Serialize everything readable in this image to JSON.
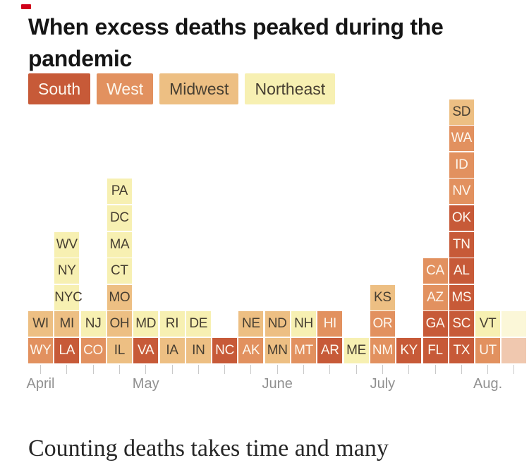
{
  "header": {
    "title": "When excess deaths peaked during the pandemic"
  },
  "legend": {
    "items": [
      {
        "key": "south",
        "label": "South"
      },
      {
        "key": "west",
        "label": "West"
      },
      {
        "key": "midwest",
        "label": "Midwest"
      },
      {
        "key": "northeast",
        "label": "Northeast"
      }
    ]
  },
  "colors": {
    "south": "#c75a38",
    "west": "#e2915f",
    "midwest": "#edbf83",
    "northeast": "#f7f0b2",
    "tile_label_light": "#fdf7ee",
    "tile_label_dark": "#463e31",
    "axis_text": "#909090",
    "tick": "#c9c9c9",
    "title_text": "#151515",
    "marker_red": "#d0021b"
  },
  "chart_data": {
    "type": "heatmap",
    "title": "When excess deaths peaked during the pandemic",
    "description": "Weekly tile timeline from April to August; each tile is a state (plus DC and NYC) placed in the week its excess deaths peaked, colored by region. Tiles stack bottom-to-top within each week.",
    "legend_position": "top",
    "legend_entries": [
      "South",
      "West",
      "Midwest",
      "Northeast"
    ],
    "x_axis": {
      "tick_labels": [
        "April",
        "May",
        "June",
        "July",
        "Aug."
      ],
      "tick_label_columns": [
        1,
        5,
        10,
        14,
        18
      ],
      "total_columns": 19,
      "grid": false
    },
    "columns": [
      {
        "week": 1,
        "states": [
          {
            "abbr": "WY",
            "region": "west"
          },
          {
            "abbr": "WI",
            "region": "midwest"
          }
        ]
      },
      {
        "week": 2,
        "states": [
          {
            "abbr": "LA",
            "region": "south"
          },
          {
            "abbr": "MI",
            "region": "midwest"
          },
          {
            "abbr": "NYC",
            "region": "northeast"
          },
          {
            "abbr": "NY",
            "region": "northeast"
          },
          {
            "abbr": "WV",
            "region": "northeast"
          }
        ]
      },
      {
        "week": 3,
        "states": [
          {
            "abbr": "CO",
            "region": "west"
          },
          {
            "abbr": "NJ",
            "region": "northeast"
          }
        ]
      },
      {
        "week": 4,
        "states": [
          {
            "abbr": "IL",
            "region": "midwest"
          },
          {
            "abbr": "OH",
            "region": "midwest"
          },
          {
            "abbr": "MO",
            "region": "midwest"
          },
          {
            "abbr": "CT",
            "region": "northeast"
          },
          {
            "abbr": "MA",
            "region": "northeast"
          },
          {
            "abbr": "DC",
            "region": "northeast"
          },
          {
            "abbr": "PA",
            "region": "northeast"
          }
        ]
      },
      {
        "week": 5,
        "states": [
          {
            "abbr": "VA",
            "region": "south"
          },
          {
            "abbr": "MD",
            "region": "northeast"
          }
        ]
      },
      {
        "week": 6,
        "states": [
          {
            "abbr": "IA",
            "region": "midwest"
          },
          {
            "abbr": "RI",
            "region": "northeast"
          }
        ]
      },
      {
        "week": 7,
        "states": [
          {
            "abbr": "IN",
            "region": "midwest"
          },
          {
            "abbr": "DE",
            "region": "northeast"
          }
        ]
      },
      {
        "week": 8,
        "states": [
          {
            "abbr": "NC",
            "region": "south"
          }
        ]
      },
      {
        "week": 9,
        "states": [
          {
            "abbr": "AK",
            "region": "west"
          },
          {
            "abbr": "NE",
            "region": "midwest"
          }
        ]
      },
      {
        "week": 10,
        "states": [
          {
            "abbr": "MN",
            "region": "midwest"
          },
          {
            "abbr": "ND",
            "region": "midwest"
          }
        ]
      },
      {
        "week": 11,
        "states": [
          {
            "abbr": "MT",
            "region": "west"
          },
          {
            "abbr": "NH",
            "region": "northeast"
          }
        ]
      },
      {
        "week": 12,
        "states": [
          {
            "abbr": "AR",
            "region": "south"
          },
          {
            "abbr": "HI",
            "region": "west"
          }
        ]
      },
      {
        "week": 13,
        "states": [
          {
            "abbr": "ME",
            "region": "northeast"
          }
        ]
      },
      {
        "week": 14,
        "states": [
          {
            "abbr": "NM",
            "region": "west"
          },
          {
            "abbr": "OR",
            "region": "west"
          },
          {
            "abbr": "KS",
            "region": "midwest"
          }
        ]
      },
      {
        "week": 15,
        "states": [
          {
            "abbr": "KY",
            "region": "south"
          }
        ]
      },
      {
        "week": 16,
        "states": [
          {
            "abbr": "FL",
            "region": "south"
          },
          {
            "abbr": "GA",
            "region": "south"
          },
          {
            "abbr": "AZ",
            "region": "west"
          },
          {
            "abbr": "CA",
            "region": "west"
          }
        ]
      },
      {
        "week": 17,
        "states": [
          {
            "abbr": "TX",
            "region": "south"
          },
          {
            "abbr": "SC",
            "region": "south"
          },
          {
            "abbr": "MS",
            "region": "south"
          },
          {
            "abbr": "AL",
            "region": "south"
          },
          {
            "abbr": "TN",
            "region": "south"
          },
          {
            "abbr": "OK",
            "region": "south"
          },
          {
            "abbr": "NV",
            "region": "west"
          },
          {
            "abbr": "ID",
            "region": "west"
          },
          {
            "abbr": "WA",
            "region": "west"
          },
          {
            "abbr": "SD",
            "region": "midwest"
          }
        ]
      },
      {
        "week": 18,
        "states": [
          {
            "abbr": "UT",
            "region": "west"
          },
          {
            "abbr": "VT",
            "region": "northeast"
          }
        ]
      },
      {
        "week": 19,
        "states": [
          {
            "abbr": "",
            "region": "west",
            "faded": true
          },
          {
            "abbr": "",
            "region": "northeast",
            "faded": true
          }
        ]
      }
    ]
  },
  "article": {
    "paragraph_start": "Counting deaths takes time and many"
  }
}
